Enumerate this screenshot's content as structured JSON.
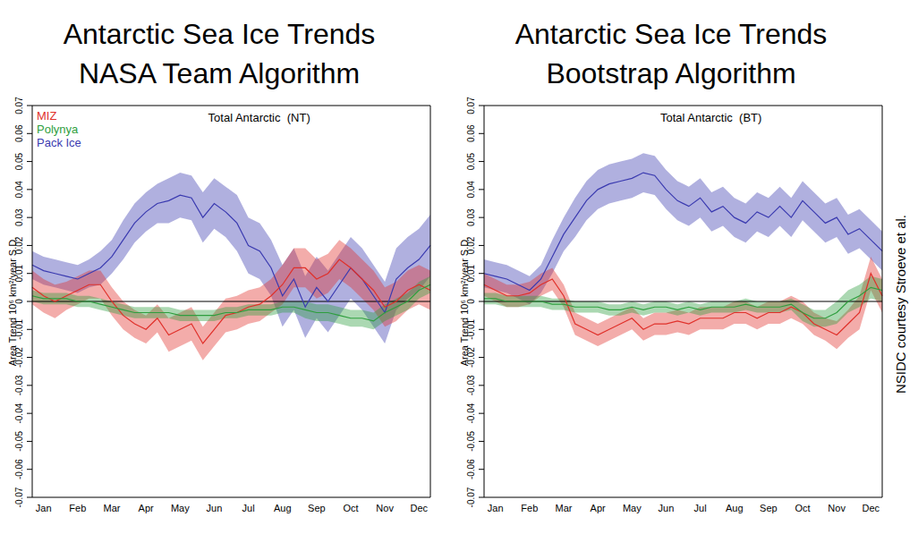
{
  "chart_data": [
    {
      "type": "line",
      "title": "Antarctic Sea Ice Trends",
      "subtitle": "NASA Team Algorithm",
      "annotation": "Total Antarctic  (NT)",
      "y_label": "Area Trend 10⁶ km²/year S.D.",
      "categories": [
        null,
        "Jan",
        null,
        null,
        "Feb",
        null,
        null,
        "Mar",
        null,
        null,
        "Apr",
        null,
        null,
        "May",
        null,
        null,
        "Jun",
        null,
        null,
        "Jul",
        null,
        null,
        "Aug",
        null,
        null,
        "Sep",
        null,
        null,
        "Oct",
        null,
        null,
        "Nov",
        null,
        null,
        "Dec",
        null
      ],
      "ylim": [
        -0.07,
        0.07
      ],
      "yticks": [
        -0.07,
        -0.06,
        -0.05,
        -0.04,
        -0.03,
        -0.02,
        -0.01,
        0,
        0.01,
        0.02,
        0.03,
        0.04,
        0.05,
        0.06,
        0.07
      ],
      "baseline": 0,
      "legend": "upper left",
      "series": [
        {
          "name": "MIZ",
          "color": "#e0302a",
          "values": [
            0.005,
            0.002,
            0.0,
            0.002,
            0.004,
            0.006,
            0.006,
            0.0,
            -0.005,
            -0.008,
            -0.01,
            -0.006,
            -0.012,
            -0.01,
            -0.008,
            -0.015,
            -0.01,
            -0.005,
            -0.004,
            -0.002,
            -0.001,
            0.002,
            0.006,
            0.012,
            0.012,
            0.008,
            0.01,
            0.015,
            0.012,
            0.008,
            0.004,
            -0.002,
            0.0,
            0.004,
            0.006,
            0.004
          ],
          "sd": [
            0.006,
            0.006,
            0.006,
            0.005,
            0.005,
            0.005,
            0.005,
            0.005,
            0.005,
            0.005,
            0.005,
            0.005,
            0.006,
            0.006,
            0.006,
            0.006,
            0.006,
            0.006,
            0.006,
            0.006,
            0.006,
            0.006,
            0.007,
            0.007,
            0.007,
            0.007,
            0.007,
            0.007,
            0.007,
            0.007,
            0.007,
            0.007,
            0.007,
            0.007,
            0.007,
            0.007
          ]
        },
        {
          "name": "Polynya",
          "color": "#2e9e3e",
          "values": [
            0.002,
            0.001,
            0.001,
            0.001,
            0.0,
            0.0,
            -0.001,
            -0.002,
            -0.003,
            -0.004,
            -0.004,
            -0.004,
            -0.004,
            -0.005,
            -0.005,
            -0.005,
            -0.005,
            -0.004,
            -0.004,
            -0.003,
            -0.003,
            -0.003,
            -0.002,
            -0.002,
            -0.003,
            -0.004,
            -0.004,
            -0.005,
            -0.006,
            -0.006,
            -0.007,
            -0.004,
            -0.002,
            0.0,
            0.004,
            0.006
          ],
          "sd": [
            0.002,
            0.002,
            0.002,
            0.002,
            0.002,
            0.002,
            0.002,
            0.002,
            0.002,
            0.002,
            0.002,
            0.002,
            0.002,
            0.002,
            0.002,
            0.002,
            0.002,
            0.002,
            0.002,
            0.002,
            0.002,
            0.002,
            0.002,
            0.002,
            0.003,
            0.003,
            0.003,
            0.003,
            0.003,
            0.003,
            0.003,
            0.003,
            0.003,
            0.003,
            0.003,
            0.003
          ]
        },
        {
          "name": "Pack Ice",
          "color": "#3a3ab0",
          "values": [
            0.013,
            0.011,
            0.01,
            0.009,
            0.008,
            0.01,
            0.012,
            0.016,
            0.022,
            0.028,
            0.032,
            0.035,
            0.036,
            0.038,
            0.037,
            0.03,
            0.035,
            0.032,
            0.028,
            0.02,
            0.018,
            0.012,
            0.002,
            0.008,
            -0.002,
            0.005,
            0.0,
            0.006,
            0.012,
            0.008,
            0.002,
            -0.004,
            0.008,
            0.012,
            0.015,
            0.02
          ],
          "sd": [
            0.005,
            0.005,
            0.005,
            0.005,
            0.005,
            0.005,
            0.006,
            0.006,
            0.007,
            0.007,
            0.007,
            0.007,
            0.008,
            0.008,
            0.008,
            0.009,
            0.009,
            0.009,
            0.01,
            0.01,
            0.01,
            0.01,
            0.011,
            0.011,
            0.011,
            0.011,
            0.011,
            0.011,
            0.011,
            0.011,
            0.011,
            0.011,
            0.011,
            0.011,
            0.011,
            0.011
          ]
        }
      ]
    },
    {
      "type": "line",
      "title": "Antarctic Sea Ice Trends",
      "subtitle": "Bootstrap Algorithm",
      "annotation": "Total Antarctic  (BT)",
      "y_label": "Area Trend 10⁶ km²/year S.D.",
      "categories": [
        null,
        "Jan",
        null,
        null,
        "Feb",
        null,
        null,
        "Mar",
        null,
        null,
        "Apr",
        null,
        null,
        "May",
        null,
        null,
        "Jun",
        null,
        null,
        "Jul",
        null,
        null,
        "Aug",
        null,
        null,
        "Sep",
        null,
        null,
        "Oct",
        null,
        null,
        "Nov",
        null,
        null,
        "Dec",
        null
      ],
      "ylim": [
        -0.07,
        0.07
      ],
      "yticks": [
        -0.07,
        -0.06,
        -0.05,
        -0.04,
        -0.03,
        -0.02,
        -0.01,
        0,
        0.01,
        0.02,
        0.03,
        0.04,
        0.05,
        0.06,
        0.07
      ],
      "baseline": 0,
      "series": [
        {
          "name": "MIZ",
          "color": "#e0302a",
          "values": [
            0.006,
            0.004,
            0.002,
            0.002,
            0.003,
            0.006,
            0.008,
            0.002,
            -0.008,
            -0.01,
            -0.012,
            -0.01,
            -0.008,
            -0.006,
            -0.01,
            -0.008,
            -0.008,
            -0.007,
            -0.008,
            -0.006,
            -0.006,
            -0.006,
            -0.004,
            -0.004,
            -0.006,
            -0.004,
            -0.004,
            -0.002,
            -0.004,
            -0.008,
            -0.01,
            -0.012,
            -0.008,
            -0.004,
            0.01,
            0.002
          ],
          "sd": [
            0.004,
            0.004,
            0.004,
            0.004,
            0.004,
            0.004,
            0.004,
            0.004,
            0.004,
            0.004,
            0.004,
            0.004,
            0.004,
            0.004,
            0.004,
            0.004,
            0.004,
            0.004,
            0.004,
            0.004,
            0.004,
            0.004,
            0.004,
            0.004,
            0.004,
            0.004,
            0.004,
            0.004,
            0.004,
            0.004,
            0.004,
            0.005,
            0.005,
            0.006,
            0.006,
            0.006
          ]
        },
        {
          "name": "Polynya",
          "color": "#2e9e3e",
          "values": [
            0.001,
            0.001,
            0.0,
            0.0,
            0.0,
            0.0,
            -0.001,
            -0.001,
            -0.002,
            -0.002,
            -0.002,
            -0.003,
            -0.003,
            -0.002,
            -0.003,
            -0.002,
            -0.002,
            -0.003,
            -0.002,
            -0.003,
            -0.002,
            -0.002,
            -0.002,
            -0.001,
            -0.002,
            -0.002,
            -0.002,
            -0.001,
            -0.004,
            -0.006,
            -0.006,
            -0.004,
            0.0,
            0.002,
            0.005,
            0.004
          ],
          "sd": [
            0.002,
            0.002,
            0.002,
            0.002,
            0.002,
            0.002,
            0.002,
            0.002,
            0.002,
            0.002,
            0.002,
            0.002,
            0.002,
            0.002,
            0.002,
            0.002,
            0.002,
            0.002,
            0.002,
            0.002,
            0.002,
            0.002,
            0.002,
            0.002,
            0.002,
            0.002,
            0.002,
            0.002,
            0.003,
            0.003,
            0.003,
            0.004,
            0.004,
            0.004,
            0.004,
            0.004
          ]
        },
        {
          "name": "Pack Ice",
          "color": "#3a3ab0",
          "values": [
            0.01,
            0.009,
            0.008,
            0.006,
            0.004,
            0.008,
            0.016,
            0.024,
            0.03,
            0.036,
            0.04,
            0.042,
            0.043,
            0.044,
            0.046,
            0.045,
            0.04,
            0.036,
            0.034,
            0.037,
            0.032,
            0.034,
            0.03,
            0.028,
            0.032,
            0.03,
            0.034,
            0.03,
            0.036,
            0.032,
            0.028,
            0.03,
            0.024,
            0.026,
            0.022,
            0.018
          ],
          "sd": [
            0.005,
            0.005,
            0.005,
            0.005,
            0.005,
            0.005,
            0.006,
            0.006,
            0.007,
            0.007,
            0.007,
            0.007,
            0.007,
            0.007,
            0.007,
            0.007,
            0.007,
            0.007,
            0.007,
            0.007,
            0.007,
            0.007,
            0.007,
            0.007,
            0.007,
            0.007,
            0.007,
            0.007,
            0.007,
            0.007,
            0.007,
            0.007,
            0.007,
            0.007,
            0.007,
            0.007
          ]
        }
      ]
    }
  ],
  "source": "NSIDC courtesy Stroeve et al."
}
